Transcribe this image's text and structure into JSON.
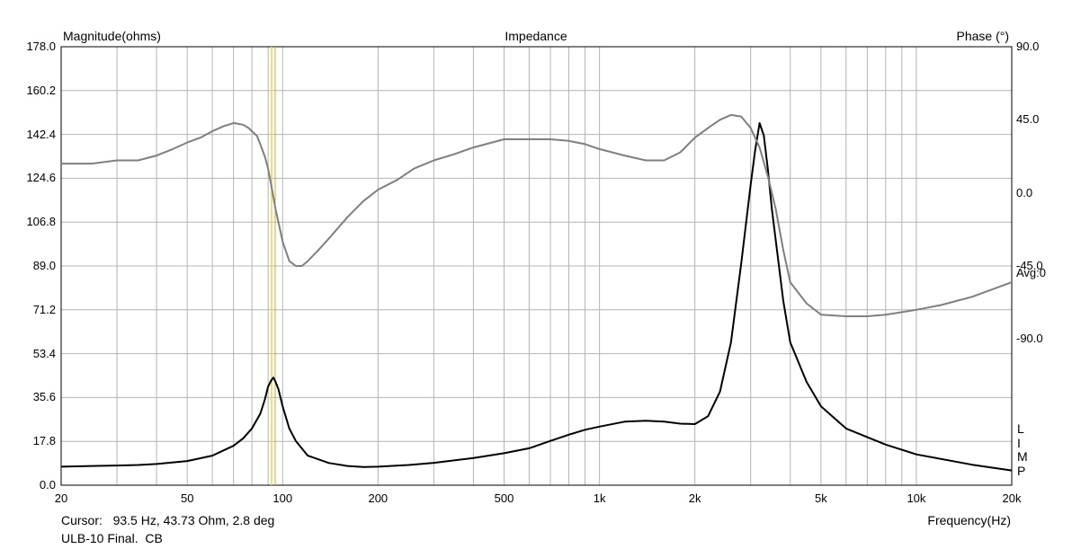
{
  "chart_data": {
    "type": "line",
    "title": "Impedance",
    "ylabel": "Magnitude(ohms)",
    "y2label": "Phase (°)",
    "xlabel": "Frequency(Hz)",
    "xscale": "log",
    "xlim": [
      20,
      20000
    ],
    "ylim": [
      0,
      178
    ],
    "y2lim": [
      -180,
      90
    ],
    "grid": true,
    "y_ticks": [
      "178.0",
      "160.2",
      "142.4",
      "124.6",
      "106.8",
      "89.0",
      "71.2",
      "53.4",
      "35.6",
      "17.8",
      "0.0"
    ],
    "y2_ticks": [
      "90.0",
      "45.0",
      "0.0",
      "-45.0",
      "-90.0"
    ],
    "avg_label": "Avg:0",
    "x_ticks": [
      {
        "value": 20,
        "label": "20"
      },
      {
        "value": 50,
        "label": "50"
      },
      {
        "value": 100,
        "label": "100"
      },
      {
        "value": 200,
        "label": "200"
      },
      {
        "value": 500,
        "label": "500"
      },
      {
        "value": 1000,
        "label": "1k"
      },
      {
        "value": 2000,
        "label": "2k"
      },
      {
        "value": 5000,
        "label": "5k"
      },
      {
        "value": 10000,
        "label": "10k"
      },
      {
        "value": 20000,
        "label": "20k"
      }
    ],
    "cursor_freq": 93.5,
    "series": [
      {
        "color": "#000000",
        "axis": "left",
        "x": [
          20,
          25,
          30,
          35,
          40,
          50,
          60,
          70,
          75,
          80,
          85,
          88,
          90,
          92,
          93.5,
          95,
          97,
          100,
          105,
          110,
          120,
          140,
          160,
          180,
          200,
          250,
          300,
          400,
          500,
          600,
          700,
          800,
          900,
          1000,
          1200,
          1400,
          1600,
          1800,
          2000,
          2200,
          2400,
          2600,
          2800,
          3000,
          3100,
          3200,
          3300,
          3400,
          3500,
          3800,
          4000,
          4500,
          5000,
          6000,
          8000,
          10000,
          15000,
          20000
        ],
        "values": [
          7.5,
          7.8,
          8.0,
          8.2,
          8.6,
          9.8,
          12,
          16,
          19,
          23,
          29,
          35,
          40,
          42.5,
          43.7,
          42,
          39,
          32,
          23,
          18,
          12,
          9,
          7.8,
          7.4,
          7.5,
          8.2,
          9.1,
          11,
          13,
          15,
          18,
          20.5,
          22.5,
          23.8,
          25.8,
          26.2,
          25.8,
          25.0,
          24.8,
          28,
          38,
          58,
          90,
          122,
          136,
          147,
          142,
          128,
          112,
          75,
          58,
          42,
          32,
          23,
          16.5,
          12.5,
          8.3,
          6.0
        ]
      },
      {
        "color": "#7f7f7f",
        "axis": "right",
        "x": [
          20,
          25,
          30,
          35,
          40,
          45,
          50,
          55,
          60,
          65,
          70,
          75,
          78,
          80,
          83,
          85,
          88,
          90,
          92,
          95,
          100,
          105,
          110,
          115,
          120,
          130,
          140,
          160,
          180,
          200,
          230,
          260,
          300,
          350,
          400,
          500,
          600,
          700,
          800,
          900,
          1000,
          1200,
          1400,
          1600,
          1800,
          2000,
          2200,
          2400,
          2600,
          2800,
          3000,
          3200,
          3400,
          3600,
          3800,
          4000,
          4500,
          5000,
          6000,
          7000,
          8000,
          10000,
          12000,
          15000,
          20000
        ],
        "values": [
          18,
          18,
          20,
          20,
          23,
          27,
          31,
          34,
          38,
          41,
          43,
          42,
          40,
          38,
          35,
          30,
          22,
          15,
          5,
          -10,
          -30,
          -42,
          -45,
          -45,
          -42,
          -35,
          -28,
          -15,
          -5,
          2,
          8,
          15,
          20,
          24,
          28,
          33,
          33,
          33,
          32,
          30,
          27,
          23,
          20,
          20,
          25,
          34,
          40,
          45,
          48,
          47,
          40,
          28,
          10,
          -10,
          -35,
          -55,
          -68,
          -75,
          -76,
          -76,
          -75,
          -72,
          -69,
          -64,
          -55
        ]
      }
    ]
  },
  "cursor_text": "Cursor:   93.5 Hz, 43.73 Ohm, 2.8 deg",
  "footer_text": "ULB-10 Final.  CB",
  "legend_letters": [
    "L",
    "I",
    "M",
    "P"
  ]
}
